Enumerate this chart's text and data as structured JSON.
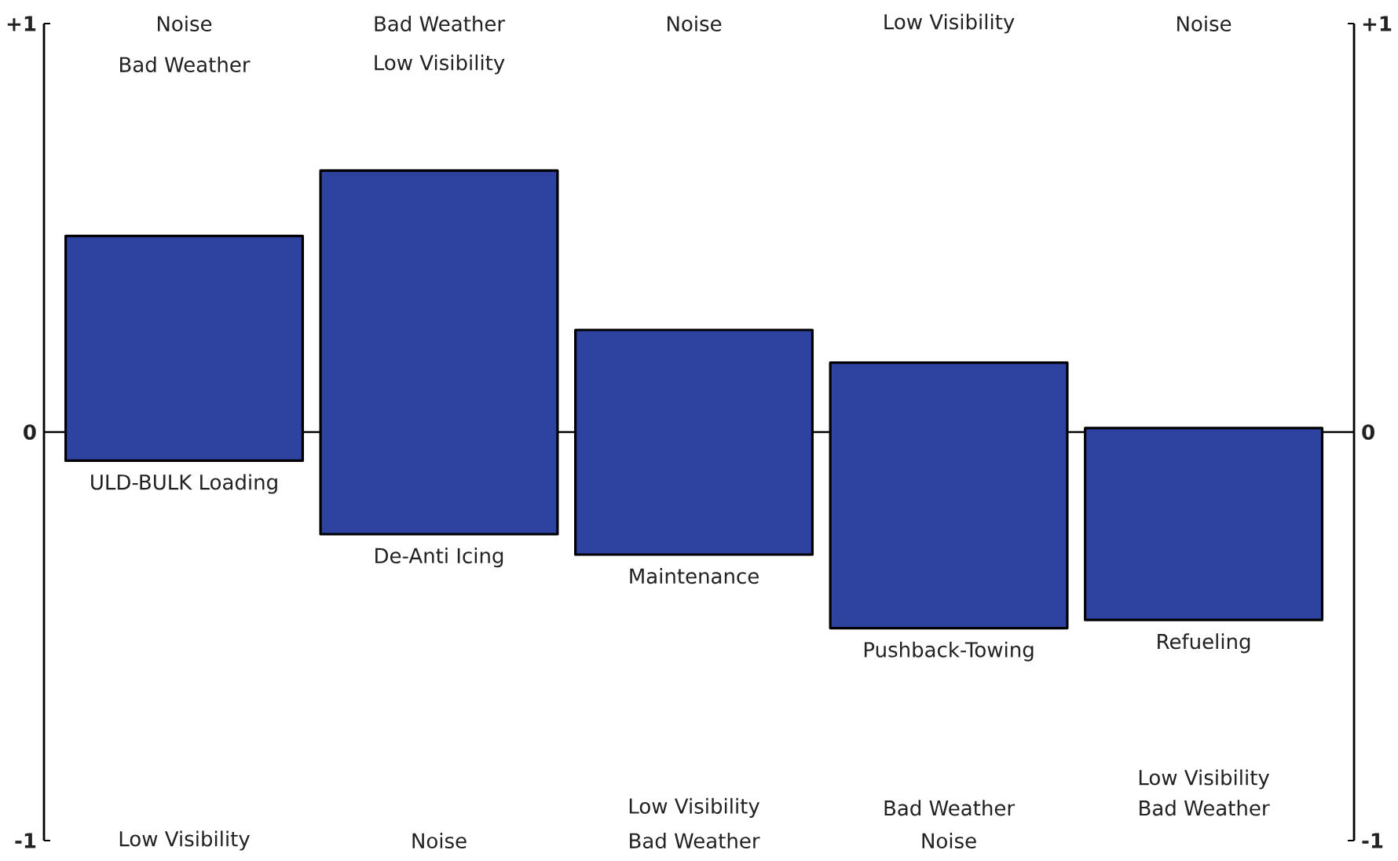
{
  "chart_data": {
    "type": "bar",
    "categories": [
      "ULD-BULK Loading",
      "De-Anti Icing",
      "Maintenance",
      "Pushback-Towing",
      "Refueling"
    ],
    "values": [
      0.55,
      0.89,
      0.55,
      0.65,
      0.47
    ],
    "base": [
      -0.07,
      -0.25,
      -0.3,
      -0.48,
      -0.46
    ],
    "color": "#2e42a0",
    "ylim": [
      -1,
      1
    ],
    "yticks": [
      {
        "value": 1,
        "label": "+1"
      },
      0,
      {
        "value": -1,
        "label": "-1"
      }
    ],
    "y2lim": [
      -1,
      1
    ],
    "y2ticks": [
      {
        "value": 1,
        "label": "+1"
      },
      0,
      {
        "value": -1,
        "label": "-1"
      }
    ],
    "ref_lines": [
      {
        "axis": "y",
        "value": 0
      }
    ],
    "annotations": [
      "Noise",
      "Bad Weather",
      "Bad Weather",
      "Low Visibility",
      "Noise",
      "Low Visibility",
      "Noise",
      "Low Visibility",
      "Noise",
      "Low Visibility",
      "Bad Weather",
      "Bad Weather",
      "Noise",
      "Low Visibility",
      "Bad Weather"
    ]
  }
}
